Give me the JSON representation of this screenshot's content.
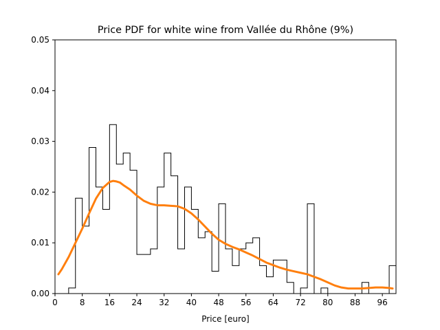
{
  "chart_data": {
    "type": "histogram",
    "title": "Price PDF for white wine from Vallée du Rhône (9%)",
    "xlabel": "Price [euro]",
    "ylabel": "",
    "xlim": [
      0,
      100
    ],
    "ylim": [
      0,
      0.05
    ],
    "xticks": [
      0,
      8,
      16,
      24,
      32,
      40,
      48,
      56,
      64,
      72,
      80,
      88,
      96
    ],
    "xtick_labels": [
      "0",
      "8",
      "16",
      "24",
      "32",
      "40",
      "48",
      "56",
      "64",
      "72",
      "80",
      "88",
      "96"
    ],
    "yticks": [
      0,
      0.01,
      0.02,
      0.03,
      0.04,
      0.05
    ],
    "ytick_labels": [
      "0.00",
      "0.01",
      "0.02",
      "0.03",
      "0.04",
      "0.05"
    ],
    "grid": false,
    "histogram": {
      "color": "#000000",
      "bin_edges": [
        4,
        6,
        8,
        10,
        12,
        14,
        16,
        18,
        20,
        22,
        24,
        26,
        28,
        30,
        32,
        34,
        36,
        38,
        40,
        42,
        44,
        46,
        48,
        50,
        52,
        54,
        56,
        58,
        60,
        62,
        64,
        66,
        68,
        70,
        72,
        74,
        76,
        78,
        80,
        82,
        84,
        86,
        88,
        90,
        92,
        94,
        96,
        98,
        100
      ],
      "densities": [
        0.0011,
        0.0188,
        0.0133,
        0.0288,
        0.021,
        0.0166,
        0.0333,
        0.0255,
        0.0277,
        0.0243,
        0.0077,
        0.0077,
        0.0088,
        0.021,
        0.0277,
        0.0232,
        0.0088,
        0.021,
        0.0166,
        0.011,
        0.0122,
        0.0044,
        0.0177,
        0.0088,
        0.0055,
        0.0088,
        0.01,
        0.011,
        0.0055,
        0.0033,
        0.0066,
        0.0066,
        0.0022,
        0,
        0.0011,
        0.0177,
        0,
        0.0011,
        0,
        0,
        0,
        0,
        0,
        0.0022,
        0,
        0,
        0,
        0.0055
      ]
    },
    "kde": {
      "color": "#ff7f0e",
      "x": [
        1,
        2,
        4,
        6,
        8,
        10,
        12,
        14,
        16,
        17,
        18,
        19,
        20,
        22,
        24,
        26,
        28,
        30,
        32,
        34,
        36,
        38,
        40,
        42,
        44,
        46,
        48,
        50,
        52,
        54,
        56,
        58,
        60,
        62,
        64,
        66,
        68,
        70,
        72,
        74,
        76,
        78,
        80,
        82,
        84,
        86,
        88,
        90,
        92,
        94,
        96,
        98,
        99
      ],
      "y": [
        0.0038,
        0.0048,
        0.0072,
        0.01,
        0.0128,
        0.0158,
        0.0187,
        0.0208,
        0.022,
        0.0222,
        0.0221,
        0.0219,
        0.0214,
        0.0205,
        0.0193,
        0.0183,
        0.0177,
        0.0174,
        0.0174,
        0.0173,
        0.0172,
        0.0167,
        0.0158,
        0.0146,
        0.0132,
        0.0118,
        0.0106,
        0.0098,
        0.0092,
        0.0087,
        0.0081,
        0.0075,
        0.0068,
        0.0061,
        0.0056,
        0.0051,
        0.0047,
        0.0044,
        0.0041,
        0.0038,
        0.0033,
        0.0028,
        0.0022,
        0.0016,
        0.0012,
        0.001,
        0.001,
        0.001,
        0.0011,
        0.0012,
        0.0012,
        0.0011,
        0.001
      ]
    }
  }
}
